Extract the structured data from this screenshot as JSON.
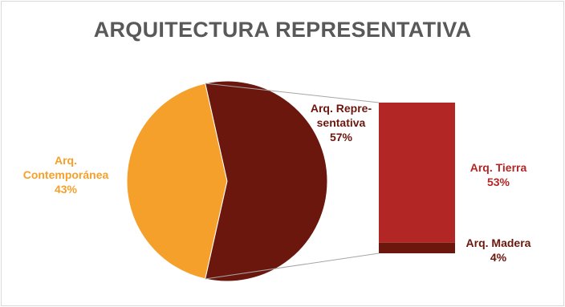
{
  "chart_data": {
    "type": "pie",
    "subtype": "bar-of-pie",
    "title": "ARQUITECTURA REPRESENTATIVA",
    "pie": {
      "slices": [
        {
          "label_lines": [
            "Arq.",
            "Contemporánea"
          ],
          "value": 43,
          "display": "43%",
          "color": "#f5a02a",
          "label_color": "#f5a02a"
        },
        {
          "label_lines": [
            "Arq. Repre-",
            "sentativa"
          ],
          "value": 57,
          "display": "57%",
          "color": "#6b170d",
          "label_color": "#6b170d"
        }
      ]
    },
    "bar": {
      "segments": [
        {
          "label": "Arq. Tierra",
          "value": 53,
          "display": "53%",
          "color": "#b22726",
          "label_color": "#b22726"
        },
        {
          "label": "Arq. Madera",
          "value": 4,
          "display": "4%",
          "color": "#6b170d",
          "label_color": "#6b170d"
        }
      ]
    },
    "legend": "none",
    "grid": false
  }
}
